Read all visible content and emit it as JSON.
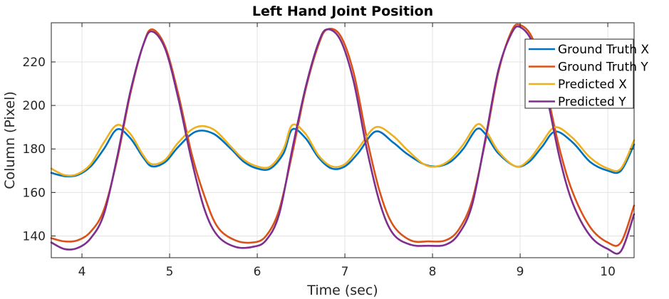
{
  "chart_data": {
    "type": "line",
    "title": "Left Hand Joint Position",
    "xlabel": "Time (sec)",
    "ylabel": "Column (Pixel)",
    "xlim": [
      3.65,
      10.3
    ],
    "ylim": [
      130,
      238
    ],
    "grid": true,
    "legend_position": "top-right",
    "x_ticks": [
      4,
      5,
      6,
      7,
      8,
      9,
      10
    ],
    "x_tick_labels": [
      "4",
      "5",
      "6",
      "7",
      "8",
      "9",
      "10"
    ],
    "y_ticks": [
      140,
      160,
      180,
      200,
      220
    ],
    "y_tick_labels": [
      "140",
      "160",
      "180",
      "200",
      "220"
    ],
    "series": [
      {
        "name": "Ground Truth X",
        "color": "#0072BD",
        "x": [
          3.65,
          3.8,
          3.95,
          4.1,
          4.25,
          4.4,
          4.55,
          4.7,
          4.8,
          4.95,
          5.1,
          5.3,
          5.5,
          5.7,
          5.85,
          6.0,
          6.15,
          6.3,
          6.4,
          6.55,
          6.7,
          6.85,
          7.0,
          7.15,
          7.35,
          7.55,
          7.7,
          7.9,
          8.05,
          8.2,
          8.35,
          8.5,
          8.6,
          8.75,
          8.95,
          9.1,
          9.25,
          9.4,
          9.6,
          9.8,
          10.0,
          10.15,
          10.3
        ],
        "y": [
          169,
          167.5,
          168,
          172,
          180,
          189,
          185,
          176,
          172,
          174,
          181,
          188,
          187,
          180,
          174,
          171,
          171,
          178,
          189,
          185,
          176,
          171,
          172,
          178,
          188,
          183,
          178,
          173,
          172,
          174,
          180,
          189,
          187,
          178,
          172,
          174,
          181,
          188,
          183,
          174,
          170,
          170,
          182
        ]
      },
      {
        "name": "Ground Truth Y",
        "color": "#D95319",
        "x": [
          3.65,
          3.8,
          3.95,
          4.1,
          4.25,
          4.4,
          4.55,
          4.7,
          4.8,
          4.95,
          5.1,
          5.25,
          5.4,
          5.55,
          5.75,
          5.95,
          6.1,
          6.25,
          6.4,
          6.55,
          6.7,
          6.8,
          6.95,
          7.1,
          7.25,
          7.4,
          7.55,
          7.75,
          7.95,
          8.15,
          8.3,
          8.45,
          8.6,
          8.75,
          8.9,
          9.0,
          9.15,
          9.3,
          9.45,
          9.6,
          9.8,
          10.0,
          10.15,
          10.3
        ],
        "y": [
          139,
          137.5,
          138,
          142,
          152,
          175,
          205,
          228,
          235,
          227,
          205,
          178,
          158,
          144,
          138,
          137,
          140,
          152,
          178,
          207,
          228,
          235,
          232,
          215,
          185,
          160,
          145,
          138,
          137.5,
          138,
          143,
          156,
          183,
          215,
          234,
          237,
          230,
          207,
          180,
          160,
          144,
          137,
          137,
          154
        ]
      },
      {
        "name": "Predicted X",
        "color": "#EDB120",
        "x": [
          3.65,
          3.8,
          3.95,
          4.1,
          4.25,
          4.4,
          4.55,
          4.7,
          4.8,
          4.95,
          5.1,
          5.3,
          5.5,
          5.7,
          5.85,
          6.0,
          6.15,
          6.3,
          6.4,
          6.55,
          6.7,
          6.85,
          7.0,
          7.15,
          7.35,
          7.55,
          7.7,
          7.9,
          8.05,
          8.2,
          8.35,
          8.5,
          8.6,
          8.75,
          8.95,
          9.1,
          9.25,
          9.4,
          9.6,
          9.8,
          10.0,
          10.15,
          10.3
        ],
        "y": [
          171,
          168,
          168.5,
          173,
          183,
          191,
          187,
          177,
          173,
          175,
          183,
          190,
          189,
          181,
          175,
          172,
          172,
          180,
          191,
          187,
          177,
          172,
          173,
          180,
          190,
          186,
          180,
          173,
          172,
          175,
          182,
          191,
          189,
          179,
          172,
          175,
          183,
          190,
          185,
          176,
          171,
          171,
          184
        ]
      },
      {
        "name": "Predicted Y",
        "color": "#7E2F8E",
        "x": [
          3.65,
          3.8,
          3.95,
          4.1,
          4.25,
          4.4,
          4.55,
          4.7,
          4.8,
          4.95,
          5.1,
          5.25,
          5.4,
          5.55,
          5.75,
          5.95,
          6.1,
          6.25,
          6.4,
          6.55,
          6.7,
          6.8,
          6.95,
          7.1,
          7.25,
          7.4,
          7.55,
          7.75,
          7.95,
          8.15,
          8.3,
          8.45,
          8.6,
          8.75,
          8.9,
          9.0,
          9.15,
          9.3,
          9.45,
          9.6,
          9.8,
          10.0,
          10.15,
          10.3
        ],
        "y": [
          137,
          134,
          134.5,
          139,
          150,
          176,
          206,
          228,
          234,
          226,
          203,
          175,
          152,
          140,
          135,
          135,
          138,
          150,
          180,
          208,
          229,
          235,
          230,
          211,
          180,
          155,
          141,
          136,
          135.5,
          136,
          141,
          154,
          184,
          216,
          233,
          236,
          228,
          205,
          176,
          155,
          140,
          134,
          133,
          150
        ]
      }
    ]
  }
}
